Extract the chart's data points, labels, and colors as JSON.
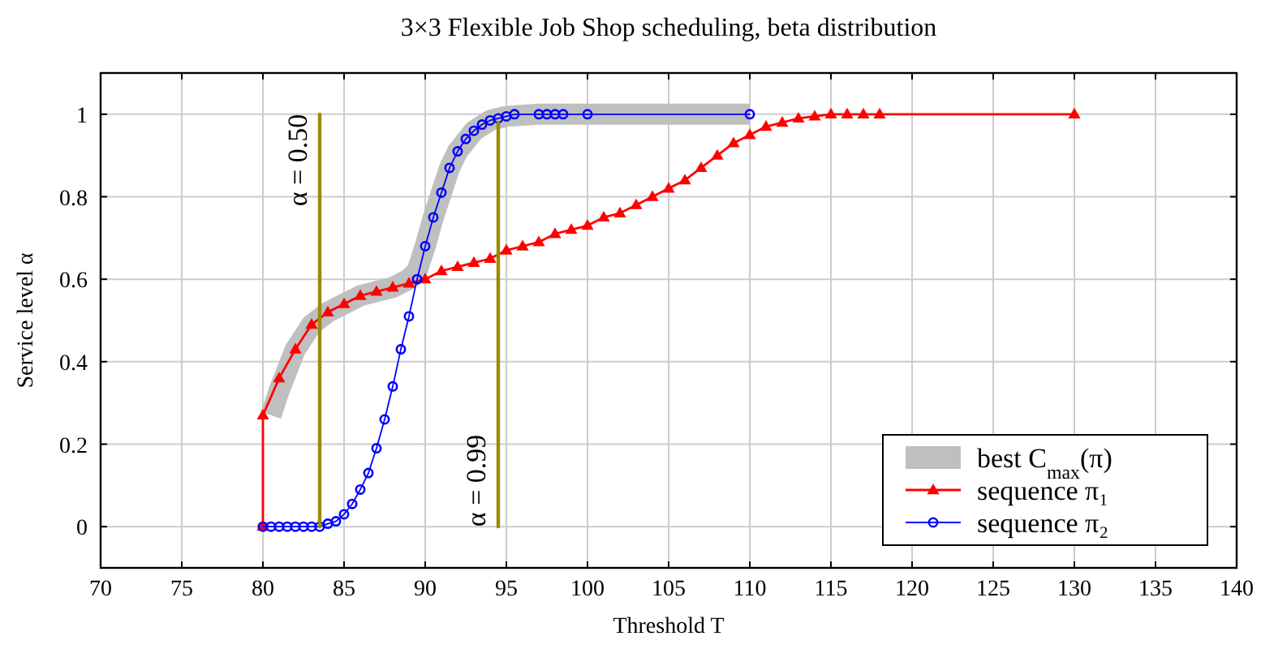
{
  "chart_data": {
    "type": "line",
    "title": "3×3 Flexible Job Shop scheduling, beta distribution",
    "xlabel": "Threshold T",
    "ylabel": "Service level α",
    "xlim": [
      70,
      140
    ],
    "xticks": [
      70,
      75,
      80,
      85,
      90,
      95,
      100,
      105,
      110,
      115,
      120,
      125,
      130,
      135,
      140
    ],
    "ylim": [
      -0.1,
      1.1
    ],
    "yticks": [
      0,
      0.2,
      0.4,
      0.6,
      0.8,
      1
    ],
    "grid": true,
    "legend": "bottom right",
    "line_style": "solid",
    "series": [
      {
        "name": "best C$_{max}$(π)",
        "color": "#bfbfbf",
        "marker": "none",
        "x": [
          80.5,
          81,
          82,
          83,
          84,
          85,
          86,
          87,
          88,
          89,
          89.5,
          90,
          90.5,
          91,
          91.5,
          92,
          93,
          94,
          95,
          97,
          100,
          110
        ],
        "values": [
          0.27,
          0.33,
          0.43,
          0.49,
          0.52,
          0.54,
          0.56,
          0.57,
          0.58,
          0.6,
          0.62,
          0.68,
          0.75,
          0.81,
          0.87,
          0.91,
          0.96,
          0.985,
          0.995,
          1,
          1,
          1
        ]
      },
      {
        "name": "sequence π₁",
        "color": "#ff0000",
        "marker": "triangle",
        "x": [
          80,
          80,
          81,
          82,
          83,
          84,
          85,
          86,
          87,
          88,
          89,
          90,
          91,
          92,
          93,
          94,
          95,
          96,
          97,
          98,
          99,
          100,
          101,
          102,
          103,
          104,
          105,
          106,
          107,
          108,
          109,
          110,
          111,
          112,
          113,
          114,
          115,
          116,
          117,
          118,
          130
        ],
        "values": [
          0,
          0.27,
          0.36,
          0.43,
          0.49,
          0.52,
          0.54,
          0.56,
          0.57,
          0.58,
          0.59,
          0.6,
          0.62,
          0.63,
          0.64,
          0.65,
          0.67,
          0.68,
          0.69,
          0.71,
          0.72,
          0.73,
          0.75,
          0.76,
          0.78,
          0.8,
          0.82,
          0.84,
          0.87,
          0.9,
          0.93,
          0.95,
          0.97,
          0.98,
          0.99,
          0.995,
          1,
          1,
          1,
          1,
          1
        ]
      },
      {
        "name": "sequence π₂",
        "color": "#0000ff",
        "marker": "circle",
        "x": [
          80,
          80.5,
          81,
          81.5,
          82,
          82.5,
          83,
          83.5,
          84,
          84.5,
          85,
          85.5,
          86,
          86.5,
          87,
          87.5,
          88,
          88.5,
          89,
          89.5,
          90,
          90.5,
          91,
          91.5,
          92,
          92.5,
          93,
          93.5,
          94,
          94.5,
          95,
          95.5,
          97,
          97.5,
          98,
          98.5,
          100,
          110
        ],
        "values": [
          0,
          0,
          0,
          0,
          0,
          0,
          0,
          0,
          0.007,
          0.013,
          0.03,
          0.055,
          0.09,
          0.13,
          0.19,
          0.26,
          0.34,
          0.43,
          0.51,
          0.6,
          0.68,
          0.75,
          0.81,
          0.87,
          0.91,
          0.94,
          0.96,
          0.975,
          0.985,
          0.99,
          0.995,
          1,
          1,
          1,
          1,
          1,
          1,
          1
        ]
      },
      {
        "name": "α = 0.50",
        "color": "#998c00",
        "marker": "none",
        "x": [
          83.5,
          83.5
        ],
        "values": [
          0,
          1
        ]
      },
      {
        "name": "α = 0.99",
        "color": "#998c00",
        "marker": "none",
        "x": [
          94.5,
          94.5
        ],
        "values": [
          0,
          0.98
        ]
      }
    ]
  }
}
